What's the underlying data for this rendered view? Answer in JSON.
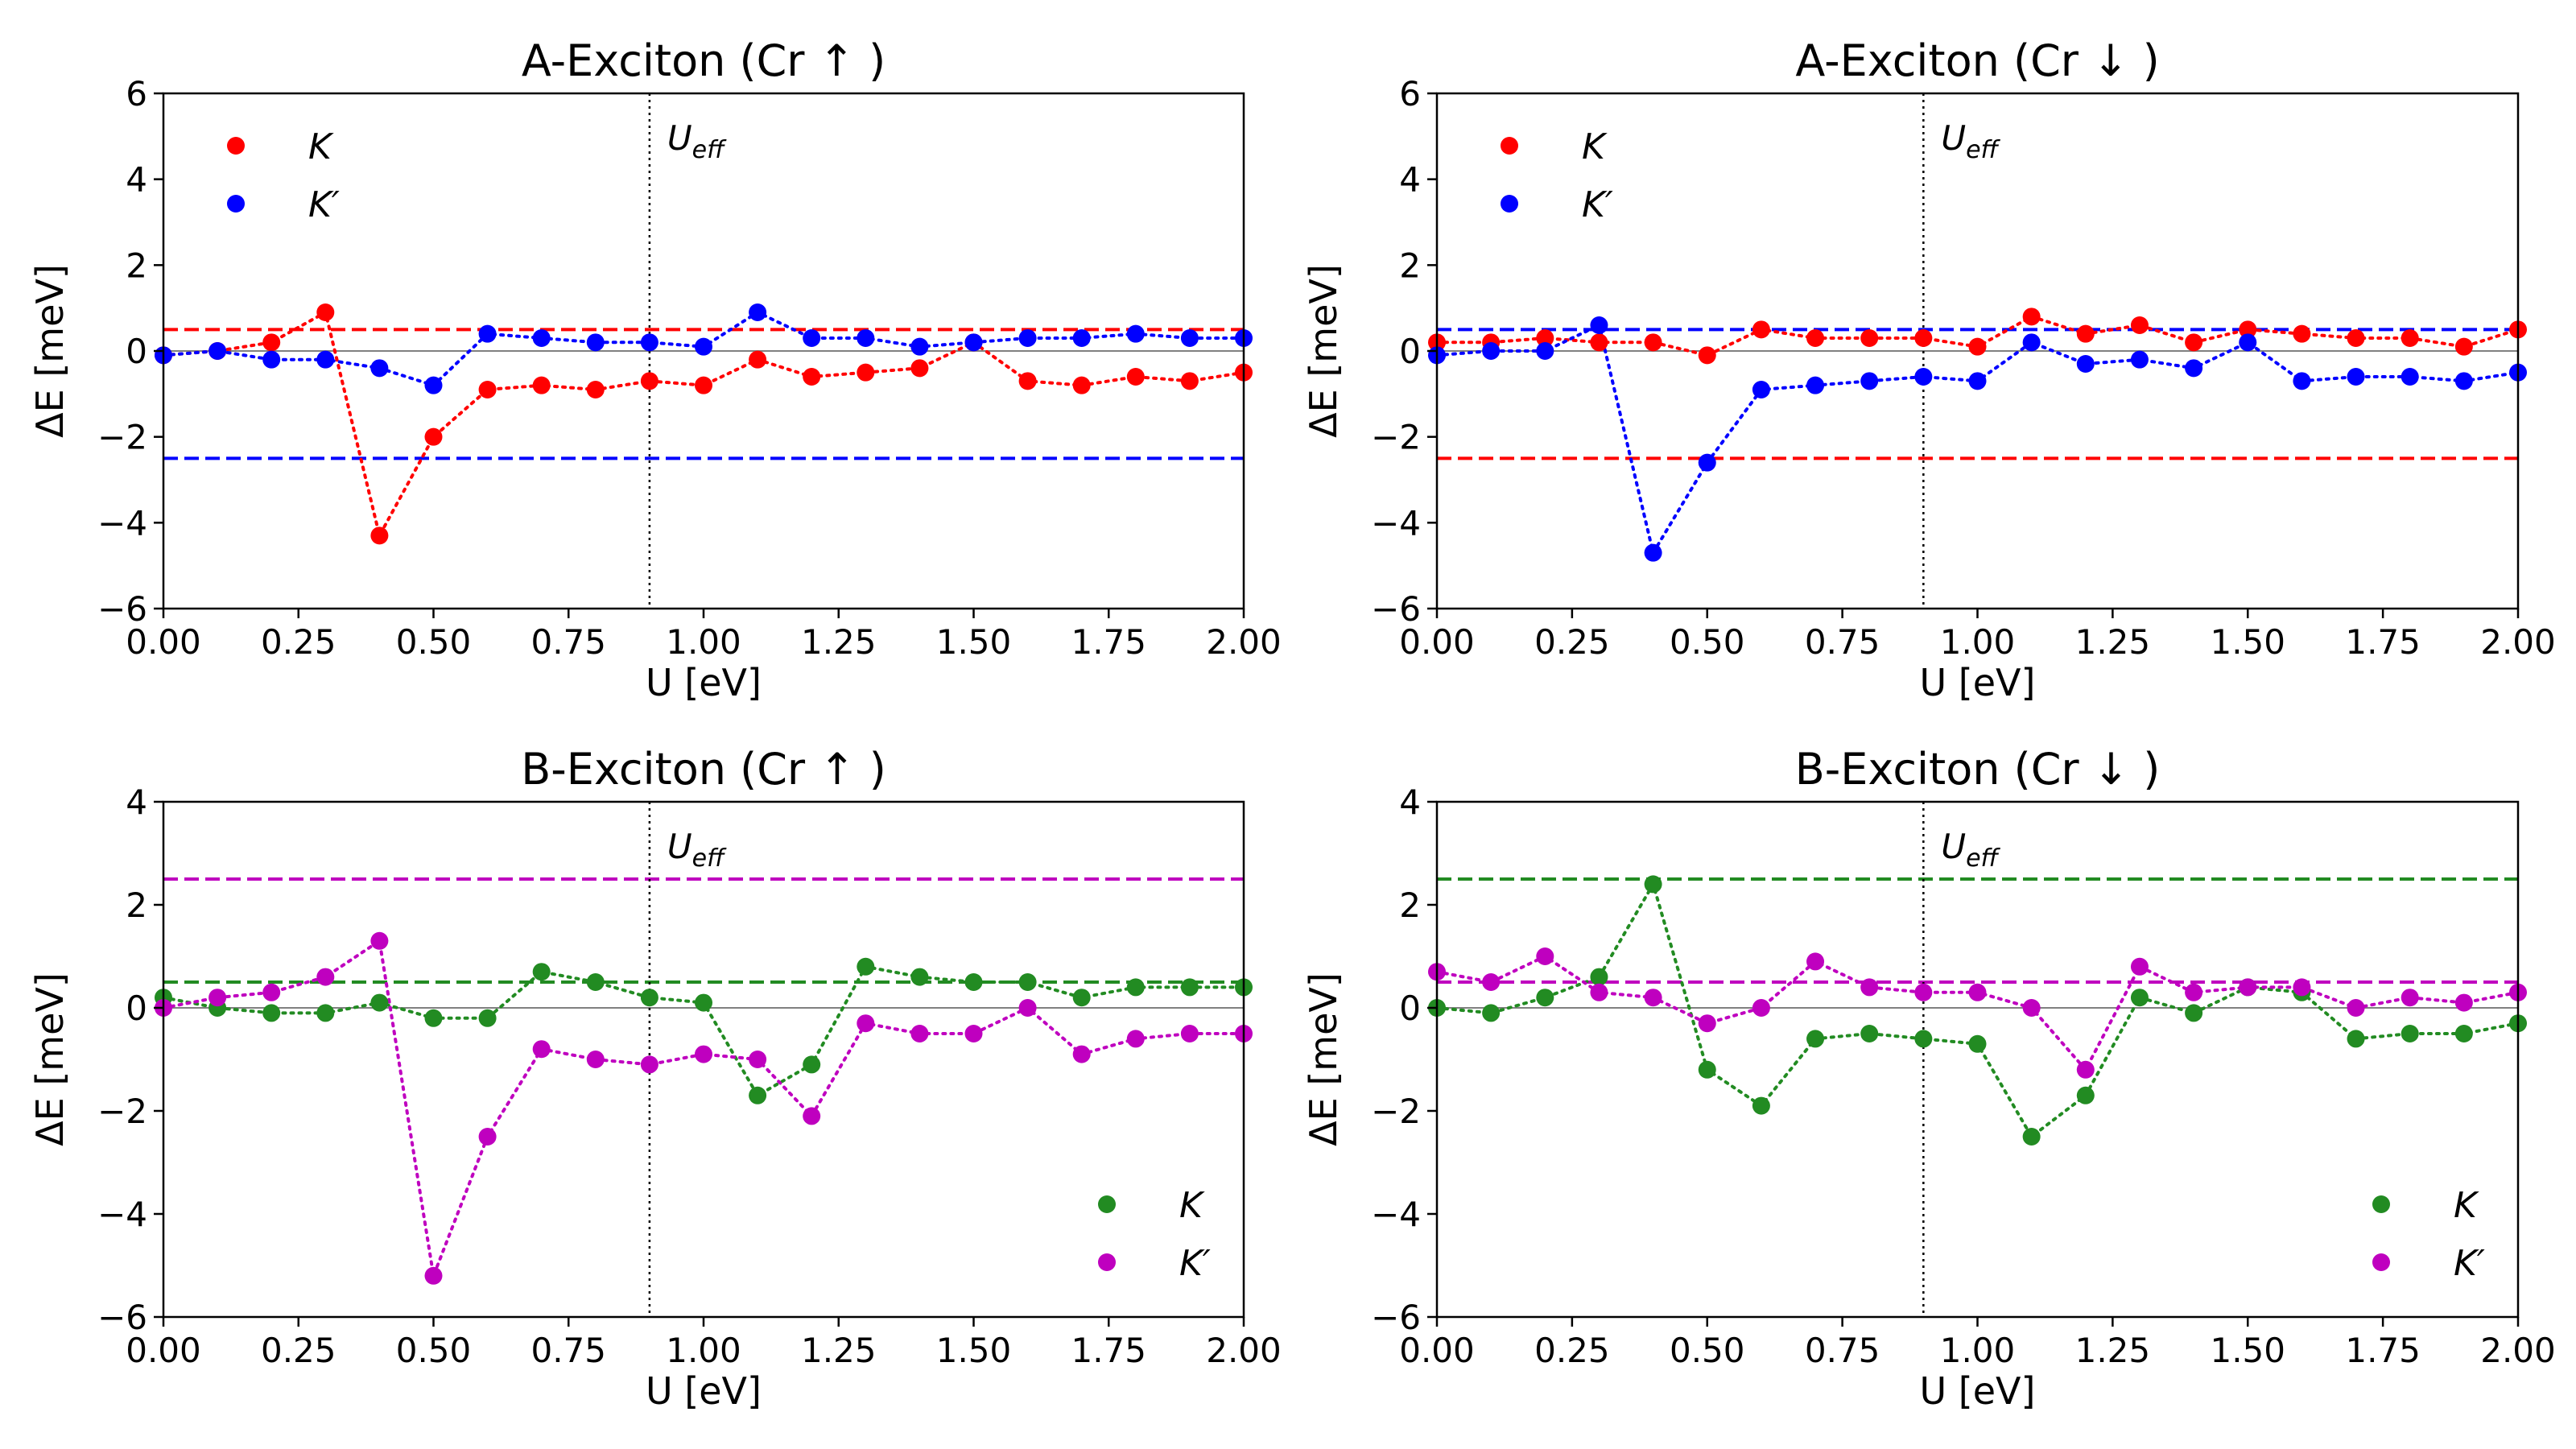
{
  "chart_data": [
    {
      "type": "scatter",
      "title": "A-Exciton (Cr ↑ )",
      "xlabel": "U [eV]",
      "ylabel": "ΔE [meV]",
      "xlim": [
        0,
        2
      ],
      "ylim": [
        -6,
        6
      ],
      "xticks": [
        "0.00",
        "0.25",
        "0.50",
        "0.75",
        "1.00",
        "1.25",
        "1.50",
        "1.75",
        "2.00"
      ],
      "yticks": [
        "−6",
        "−4",
        "−2",
        "0",
        "2",
        "4",
        "6"
      ],
      "legend_position": "upper-left",
      "vline": {
        "x": 0.9,
        "label": "U",
        "label_sub": "eff"
      },
      "hlines": [
        {
          "y": 0.5,
          "color": "#ff0000"
        },
        {
          "y": -2.5,
          "color": "#0000ff"
        }
      ],
      "x": [
        0.0,
        0.1,
        0.2,
        0.3,
        0.4,
        0.5,
        0.6,
        0.7,
        0.8,
        0.9,
        1.0,
        1.1,
        1.2,
        1.3,
        1.4,
        1.5,
        1.6,
        1.7,
        1.8,
        1.9,
        2.0
      ],
      "series": [
        {
          "name": "K",
          "color": "#ff0000",
          "values": [
            -0.1,
            0.0,
            0.2,
            0.9,
            -4.3,
            -2.0,
            -0.9,
            -0.8,
            -0.9,
            -0.7,
            -0.8,
            -0.2,
            -0.6,
            -0.5,
            -0.4,
            0.2,
            -0.7,
            -0.8,
            -0.6,
            -0.7,
            -0.5
          ]
        },
        {
          "name": "K′",
          "color": "#0000ff",
          "values": [
            -0.1,
            0.0,
            -0.2,
            -0.2,
            -0.4,
            -0.8,
            0.4,
            0.3,
            0.2,
            0.2,
            0.1,
            0.9,
            0.3,
            0.3,
            0.1,
            0.2,
            0.3,
            0.3,
            0.4,
            0.3,
            0.3
          ]
        }
      ]
    },
    {
      "type": "scatter",
      "title": "A-Exciton (Cr ↓ )",
      "xlabel": "U [eV]",
      "ylabel": "ΔE [meV]",
      "xlim": [
        0,
        2
      ],
      "ylim": [
        -6,
        6
      ],
      "xticks": [
        "0.00",
        "0.25",
        "0.50",
        "0.75",
        "1.00",
        "1.25",
        "1.50",
        "1.75",
        "2.00"
      ],
      "yticks": [
        "−6",
        "−4",
        "−2",
        "0",
        "2",
        "4",
        "6"
      ],
      "legend_position": "upper-left",
      "vline": {
        "x": 0.9,
        "label": "U",
        "label_sub": "eff"
      },
      "hlines": [
        {
          "y": 0.5,
          "color": "#0000ff"
        },
        {
          "y": -2.5,
          "color": "#ff0000"
        }
      ],
      "x": [
        0.0,
        0.1,
        0.2,
        0.3,
        0.4,
        0.5,
        0.6,
        0.7,
        0.8,
        0.9,
        1.0,
        1.1,
        1.2,
        1.3,
        1.4,
        1.5,
        1.6,
        1.7,
        1.8,
        1.9,
        2.0
      ],
      "series": [
        {
          "name": "K",
          "color": "#ff0000",
          "values": [
            0.2,
            0.2,
            0.3,
            0.2,
            0.2,
            -0.1,
            0.5,
            0.3,
            0.3,
            0.3,
            0.1,
            0.8,
            0.4,
            0.6,
            0.2,
            0.5,
            0.4,
            0.3,
            0.3,
            0.1,
            0.5
          ]
        },
        {
          "name": "K′",
          "color": "#0000ff",
          "values": [
            -0.1,
            0.0,
            0.0,
            0.6,
            -4.7,
            -2.6,
            -0.9,
            -0.8,
            -0.7,
            -0.6,
            -0.7,
            0.2,
            -0.3,
            -0.2,
            -0.4,
            0.2,
            -0.7,
            -0.6,
            -0.6,
            -0.7,
            -0.5
          ]
        }
      ]
    },
    {
      "type": "scatter",
      "title": "B-Exciton (Cr ↑ )",
      "xlabel": "U [eV]",
      "ylabel": "ΔE [meV]",
      "xlim": [
        0,
        2
      ],
      "ylim": [
        -6,
        4
      ],
      "xticks": [
        "0.00",
        "0.25",
        "0.50",
        "0.75",
        "1.00",
        "1.25",
        "1.50",
        "1.75",
        "2.00"
      ],
      "yticks": [
        "−6",
        "−4",
        "−2",
        "0",
        "2",
        "4"
      ],
      "legend_position": "lower-right",
      "vline": {
        "x": 0.9,
        "label": "U",
        "label_sub": "eff"
      },
      "hlines": [
        {
          "y": 2.5,
          "color": "#bf00bf"
        },
        {
          "y": 0.5,
          "color": "#228b22"
        }
      ],
      "x": [
        0.0,
        0.1,
        0.2,
        0.3,
        0.4,
        0.5,
        0.6,
        0.7,
        0.8,
        0.9,
        1.0,
        1.1,
        1.2,
        1.3,
        1.4,
        1.5,
        1.6,
        1.7,
        1.8,
        1.9,
        2.0
      ],
      "series": [
        {
          "name": "K",
          "color": "#228b22",
          "values": [
            0.2,
            0.0,
            -0.1,
            -0.1,
            0.1,
            -0.2,
            -0.2,
            0.7,
            0.5,
            0.2,
            0.1,
            -1.7,
            -1.1,
            0.8,
            0.6,
            0.5,
            0.5,
            0.2,
            0.4,
            0.4,
            0.4
          ]
        },
        {
          "name": "K′",
          "color": "#bf00bf",
          "values": [
            0.0,
            0.2,
            0.3,
            0.6,
            1.3,
            -5.2,
            -2.5,
            -0.8,
            -1.0,
            -1.1,
            -0.9,
            -1.0,
            -2.1,
            -0.3,
            -0.5,
            -0.5,
            0.0,
            -0.9,
            -0.6,
            -0.5,
            -0.5
          ]
        }
      ]
    },
    {
      "type": "scatter",
      "title": "B-Exciton (Cr ↓ )",
      "xlabel": "U [eV]",
      "ylabel": "ΔE [meV]",
      "xlim": [
        0,
        2
      ],
      "ylim": [
        -6,
        4
      ],
      "xticks": [
        "0.00",
        "0.25",
        "0.50",
        "0.75",
        "1.00",
        "1.25",
        "1.50",
        "1.75",
        "2.00"
      ],
      "yticks": [
        "−6",
        "−4",
        "−2",
        "0",
        "2",
        "4"
      ],
      "legend_position": "lower-right",
      "vline": {
        "x": 0.9,
        "label": "U",
        "label_sub": "eff"
      },
      "hlines": [
        {
          "y": 2.5,
          "color": "#228b22"
        },
        {
          "y": 0.5,
          "color": "#bf00bf"
        }
      ],
      "x": [
        0.0,
        0.1,
        0.2,
        0.3,
        0.4,
        0.5,
        0.6,
        0.7,
        0.8,
        0.9,
        1.0,
        1.1,
        1.2,
        1.3,
        1.4,
        1.5,
        1.6,
        1.7,
        1.8,
        1.9,
        2.0
      ],
      "series": [
        {
          "name": "K",
          "color": "#228b22",
          "values": [
            0.0,
            -0.1,
            0.2,
            0.6,
            2.4,
            -1.2,
            -1.9,
            -0.6,
            -0.5,
            -0.6,
            -0.7,
            -2.5,
            -1.7,
            0.2,
            -0.1,
            0.4,
            0.3,
            -0.6,
            -0.5,
            -0.5,
            -0.3
          ]
        },
        {
          "name": "K′",
          "color": "#bf00bf",
          "values": [
            0.7,
            0.5,
            1.0,
            0.3,
            0.2,
            -0.3,
            0.0,
            0.9,
            0.4,
            0.3,
            0.3,
            0.0,
            -1.2,
            0.8,
            0.3,
            0.4,
            0.4,
            0.0,
            0.2,
            0.1,
            0.3
          ]
        }
      ]
    }
  ]
}
